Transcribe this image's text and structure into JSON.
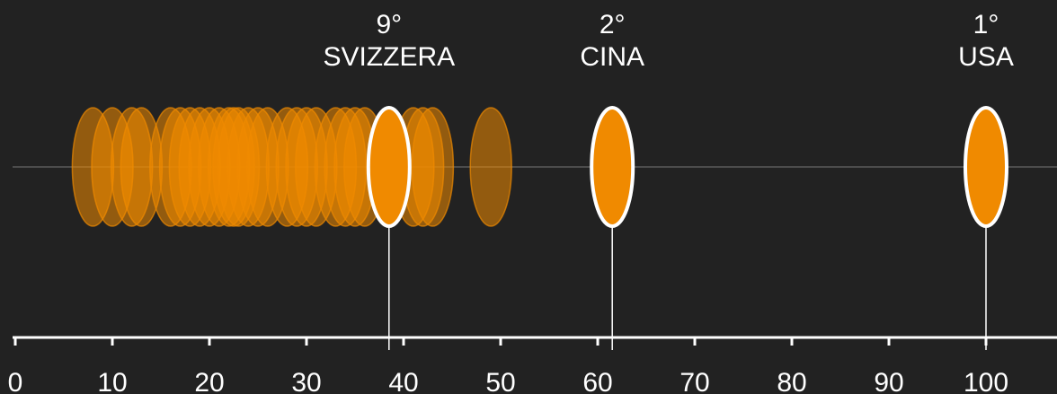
{
  "chart_data": {
    "type": "scatter",
    "title": "",
    "xlabel": "",
    "ylabel": "",
    "xlim": [
      0,
      108
    ],
    "x_ticks": [
      "0",
      "10",
      "20",
      "30",
      "40",
      "50",
      "60",
      "70",
      "80",
      "90",
      "100"
    ],
    "series": [
      {
        "role": "others",
        "values": [
          8,
          10,
          12,
          13,
          16,
          17,
          18,
          19,
          20,
          21,
          22,
          22.5,
          23,
          24,
          25,
          26,
          28,
          29,
          30,
          31,
          33,
          34,
          35,
          36,
          41,
          42,
          43,
          49
        ]
      }
    ],
    "highlights": [
      {
        "rank": "9°",
        "country": "SVIZZERA",
        "value": 38.5
      },
      {
        "rank": "2°",
        "country": "CINA",
        "value": 61.5
      },
      {
        "rank": "1°",
        "country": "USA",
        "value": 100
      }
    ],
    "colors": {
      "background": "#222222",
      "marker": "#f08a00",
      "highlight_stroke": "#ffffff",
      "baseline": "#5a5a5a",
      "axis": "#ffffff"
    }
  }
}
